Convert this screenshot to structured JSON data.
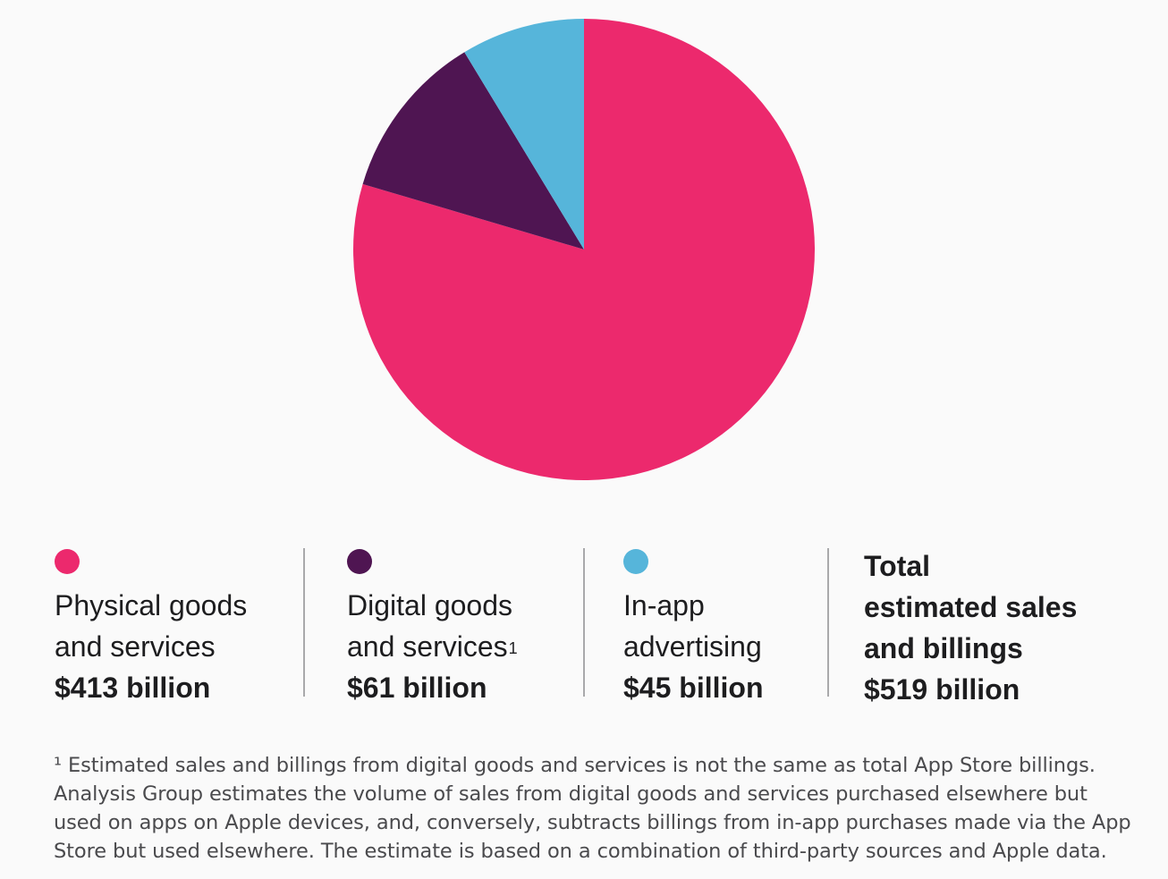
{
  "chart_data": {
    "type": "pie",
    "title": "",
    "slices": [
      {
        "name": "Physical goods and services",
        "value": 413,
        "value_label": "$413 billion",
        "color": "#ec296d"
      },
      {
        "name": "Digital goods and services",
        "value": 61,
        "value_label": "$61 billion",
        "color": "#4f1552",
        "footnote_mark": "1"
      },
      {
        "name": "In-app advertising",
        "value": 45,
        "value_label": "$45 billion",
        "color": "#56b5da"
      }
    ],
    "start_angle_deg": 0,
    "direction": "clockwise",
    "total": {
      "label": "Total estimated sales and billings",
      "value": 519,
      "value_label": "$519 billion"
    }
  },
  "legend": {
    "physical": {
      "label_line1": "Physical goods",
      "label_line2": "and services",
      "value": "$413 billion"
    },
    "digital": {
      "label_line1": "Digital goods",
      "label_line2": "and services",
      "footnote_mark": "1",
      "value": "$61 billion"
    },
    "advertising": {
      "label_line1": "In-app",
      "label_line2": "advertising",
      "value": "$45 billion"
    },
    "total": {
      "label_line1": "Total",
      "label_line2": "estimated sales",
      "label_line3": "and billings",
      "value": "$519 billion"
    }
  },
  "footnote": {
    "mark": "¹",
    "text": "Estimated sales and billings from digital goods and services is not the same as total App Store billings. Analysis Group estimates the volume of sales from digital goods and services purchased elsewhere but used on apps on Apple devices, and, conversely, subtracts billings from in-app purchases made via the App Store but used elsewhere. The estimate is based on a combination of third-party sources and Apple data."
  }
}
